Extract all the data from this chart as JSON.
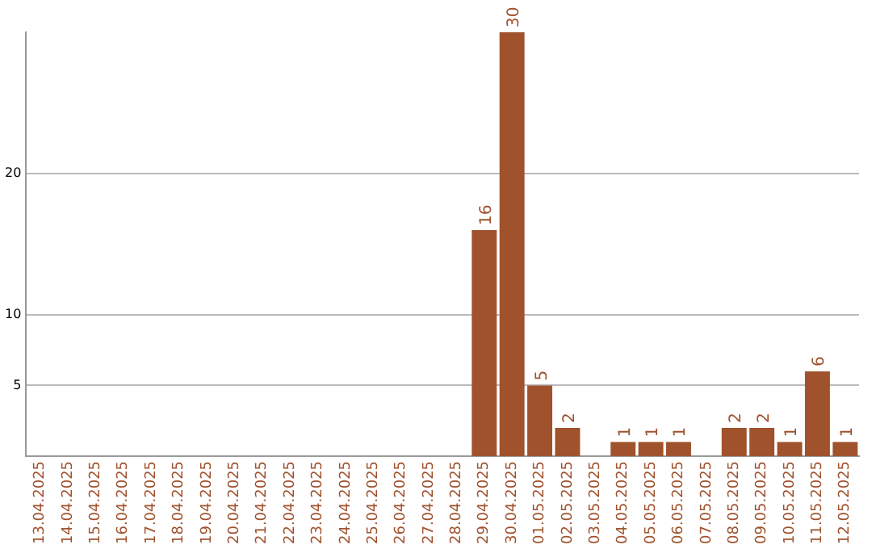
{
  "chart_data": {
    "type": "bar",
    "categories": [
      "13.04.2025",
      "14.04.2025",
      "15.04.2025",
      "16.04.2025",
      "17.04.2025",
      "18.04.2025",
      "19.04.2025",
      "20.04.2025",
      "21.04.2025",
      "22.04.2025",
      "23.04.2025",
      "24.04.2025",
      "25.04.2025",
      "26.04.2025",
      "27.04.2025",
      "28.04.2025",
      "29.04.2025",
      "30.04.2025",
      "01.05.2025",
      "02.05.2025",
      "03.05.2025",
      "04.05.2025",
      "05.05.2025",
      "06.05.2025",
      "07.05.2025",
      "08.05.2025",
      "09.05.2025",
      "10.05.2025",
      "11.05.2025",
      "12.05.2025"
    ],
    "values": [
      null,
      null,
      null,
      null,
      null,
      null,
      null,
      null,
      null,
      null,
      null,
      null,
      null,
      null,
      null,
      null,
      16,
      30,
      5,
      2,
      null,
      1,
      1,
      1,
      null,
      2,
      2,
      1,
      6,
      1
    ],
    "color": "#a0522d",
    "ylim": [
      0,
      30
    ],
    "yticks": [
      5,
      10,
      20
    ],
    "grid": "y",
    "data_labels": true,
    "legend": false
  }
}
